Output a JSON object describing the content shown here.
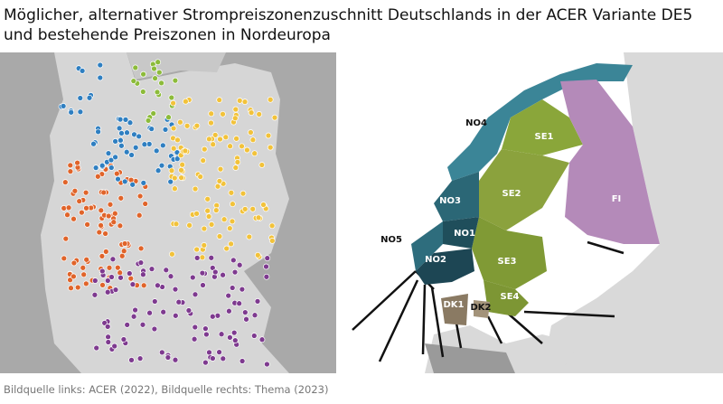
{
  "title": "Möglicher, alternativer Strompreiszonenzuschnitt Deutschlands in der ACER Variante DE5 und bestehende Preiszonen in Nordeuropa",
  "right_map": {
    "zones": [
      "NO4",
      "SE1",
      "SE2",
      "FI",
      "NO3",
      "NO1",
      "NO5",
      "SE3",
      "NO2",
      "SE4",
      "DK1",
      "DK2"
    ]
  },
  "caption": "Bildquelle links: ACER (2022), Bildquelle rechts: Thema (2023)"
}
